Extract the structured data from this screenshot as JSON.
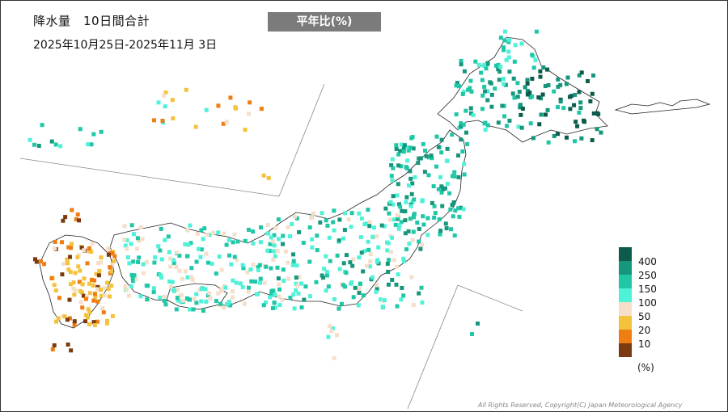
{
  "header": {
    "title": "降水量　10日間合計",
    "period": "2025年10月25日-2025年11月 3日",
    "badge": "平年比(%)"
  },
  "legend": {
    "items": [
      {
        "label": "400",
        "color": "#0d5b4b"
      },
      {
        "label": "250",
        "color": "#16967c"
      },
      {
        "label": "150",
        "color": "#1fc7a7"
      },
      {
        "label": "100",
        "color": "#4ff1d8"
      },
      {
        "label": "50",
        "color": "#f6dfc8"
      },
      {
        "label": "20",
        "color": "#f4c23c"
      },
      {
        "label": "10",
        "color": "#ee7d12"
      },
      {
        "label": "",
        "color": "#7a3b10"
      }
    ],
    "unit": "(%)"
  },
  "colors": {
    "background": "#ffffff",
    "coastline": "#222222",
    "inset_lines": "#888888",
    "badge": "#7b7b7b"
  },
  "copyright": "All Rights Reserved, Copyright(C) Japan Meteorological Agency"
}
